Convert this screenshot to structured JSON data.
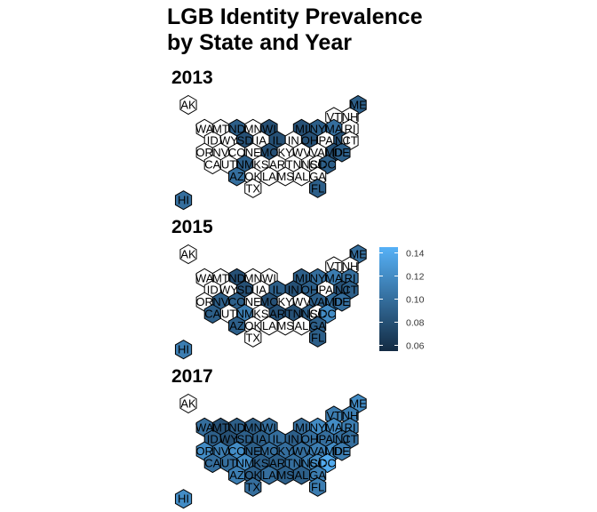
{
  "chart_data": {
    "type": "hexbin-map",
    "title": [
      "LGB Identity Prevalence",
      "by State and Year"
    ],
    "legend": {
      "position": "right",
      "range": [
        0.055,
        0.145
      ],
      "ticks": [
        "0.06",
        "0.08",
        "0.10",
        "0.12",
        "0.14"
      ],
      "tick_values": [
        0.06,
        0.08,
        0.1,
        0.12,
        0.14
      ],
      "color_low": "#132B43",
      "color_high": "#56B1F7"
    },
    "panels": [
      {
        "year": "2013",
        "values": {
          "ME": 0.09,
          "VT": null,
          "NH": null,
          "WA": null,
          "MT": null,
          "ND": 0.09,
          "MN": null,
          "WI": 0.08,
          "MI": 0.08,
          "NY": 0.09,
          "MA": 0.1,
          "RI": null,
          "ID": null,
          "WY": null,
          "SD": 0.08,
          "IA": null,
          "IL": 0.08,
          "IN": null,
          "OH": 0.08,
          "PA": null,
          "NJ": 0.08,
          "CT": null,
          "OR": null,
          "NV": null,
          "CO": null,
          "NE": null,
          "MO": 0.08,
          "KY": null,
          "WV": null,
          "VA": null,
          "MD": 0.08,
          "DE": 0.09,
          "CA": null,
          "UT": null,
          "NM": 0.09,
          "KS": null,
          "AR": null,
          "TN": null,
          "NC": null,
          "SC": null,
          "DC": 0.09,
          "AZ": 0.1,
          "OK": null,
          "LA": null,
          "MS": null,
          "AL": null,
          "GA": null,
          "TX": null,
          "FL": 0.09,
          "AK": null,
          "HI": 0.1
        }
      },
      {
        "year": "2015",
        "values": {
          "ME": 0.1,
          "VT": null,
          "NH": null,
          "WA": null,
          "MT": null,
          "ND": 0.08,
          "MN": null,
          "WI": null,
          "MI": 0.09,
          "NY": 0.1,
          "MA": 0.11,
          "RI": 0.1,
          "ID": null,
          "WY": null,
          "SD": 0.08,
          "IA": null,
          "IL": 0.09,
          "IN": 0.08,
          "OH": 0.09,
          "PA": null,
          "NJ": 0.08,
          "CT": 0.09,
          "OR": null,
          "NV": 0.09,
          "CO": 0.09,
          "NE": null,
          "MO": 0.08,
          "KY": null,
          "WV": null,
          "VA": 0.09,
          "MD": 0.1,
          "DE": 0.1,
          "CA": 0.09,
          "UT": null,
          "NM": 0.11,
          "KS": null,
          "AR": 0.08,
          "TN": 0.08,
          "NC": 0.09,
          "SC": null,
          "DC": 0.12,
          "AZ": 0.09,
          "OK": null,
          "LA": null,
          "MS": null,
          "AL": null,
          "GA": 0.09,
          "TX": null,
          "FL": 0.09,
          "AK": null,
          "HI": 0.11
        }
      },
      {
        "year": "2017",
        "values": {
          "ME": 0.12,
          "VT": 0.11,
          "NH": 0.11,
          "WA": 0.1,
          "MT": 0.08,
          "ND": 0.09,
          "MN": 0.09,
          "WI": 0.1,
          "MI": 0.1,
          "NY": 0.12,
          "MA": 0.12,
          "RI": 0.11,
          "ID": 0.09,
          "WY": 0.08,
          "SD": 0.09,
          "IA": 0.09,
          "IL": 0.1,
          "IN": 0.09,
          "OH": 0.1,
          "PA": 0.1,
          "NJ": 0.1,
          "CT": 0.1,
          "OR": 0.12,
          "NV": 0.11,
          "CO": 0.12,
          "NE": 0.09,
          "MO": 0.1,
          "KY": 0.1,
          "WV": 0.1,
          "VA": 0.11,
          "MD": 0.12,
          "DE": 0.11,
          "CA": 0.1,
          "UT": 0.1,
          "NM": 0.12,
          "KS": 0.09,
          "AR": 0.09,
          "TN": 0.1,
          "NC": 0.11,
          "SC": 0.12,
          "DC": 0.14,
          "AZ": 0.11,
          "OK": 0.09,
          "LA": 0.1,
          "MS": 0.09,
          "AL": 0.09,
          "GA": 0.11,
          "TX": 0.1,
          "FL": 0.11,
          "AK": null,
          "HI": 0.12
        }
      }
    ]
  }
}
